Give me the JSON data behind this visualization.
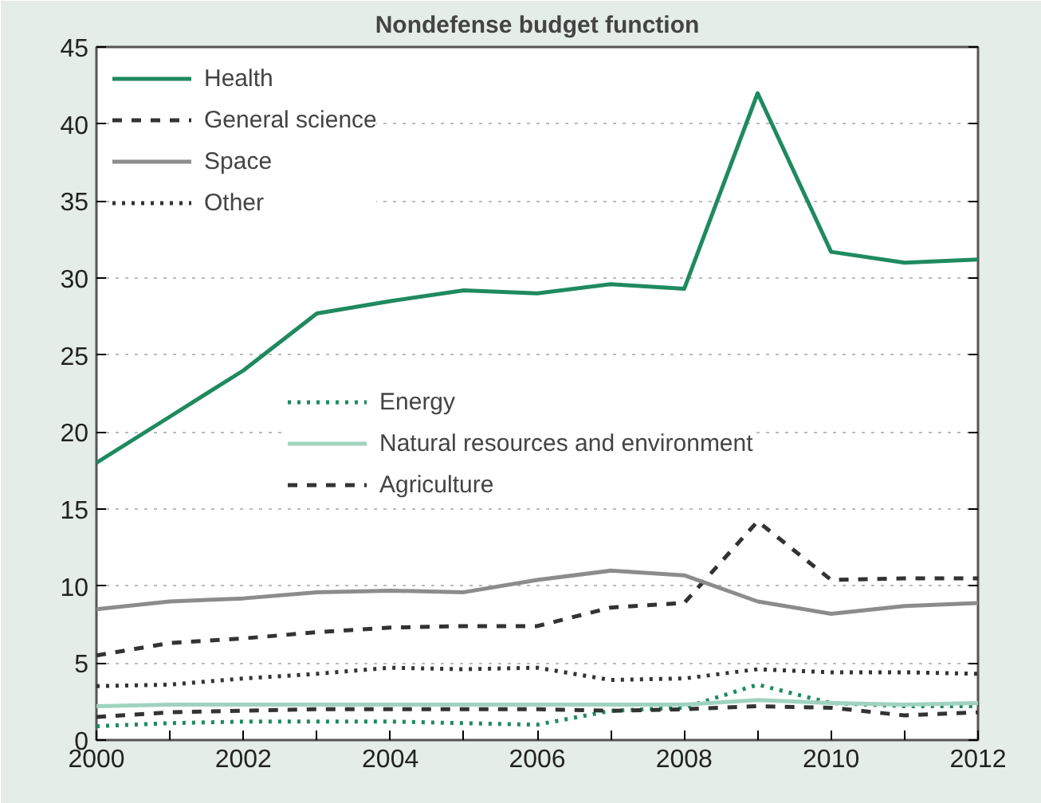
{
  "chart_data": {
    "type": "line",
    "title": "Nondefense budget function",
    "x": [
      2000,
      2001,
      2002,
      2003,
      2004,
      2005,
      2006,
      2007,
      2008,
      2009,
      2010,
      2011,
      2012
    ],
    "xlim": [
      2000,
      2012
    ],
    "ylim": [
      0,
      45
    ],
    "xticks": [
      2000,
      {
        "value": 2001,
        "label": null
      },
      2002,
      {
        "value": 2003,
        "label": null
      },
      2004,
      {
        "value": 2005,
        "label": null
      },
      2006,
      {
        "value": 2007,
        "label": null
      },
      2008,
      {
        "value": 2009,
        "label": null
      },
      2010,
      {
        "value": 2011,
        "label": null
      },
      2012
    ],
    "yticks": [
      0,
      5,
      10,
      15,
      20,
      25,
      30,
      35,
      40,
      45
    ],
    "grid": "y",
    "legend": "top left",
    "series": [
      {
        "name": "Health",
        "color": "#1f8a5f",
        "line_style": "solid",
        "values": [
          18,
          21,
          24,
          27.7,
          28.5,
          29.2,
          29,
          29.6,
          29.3,
          42,
          31.7,
          31,
          31.2
        ]
      },
      {
        "name": "General science",
        "color": "#333333",
        "line_style": "dashed",
        "values": [
          5.5,
          6.3,
          6.6,
          7,
          7.3,
          7.4,
          7.4,
          8.6,
          8.9,
          14.2,
          10.4,
          10.5,
          10.5
        ]
      },
      {
        "name": "Space",
        "color": "#8c8c8c",
        "line_style": "solid",
        "values": [
          8.5,
          9,
          9.2,
          9.6,
          9.7,
          9.6,
          10.4,
          11,
          10.7,
          9,
          8.2,
          8.7,
          8.9
        ]
      },
      {
        "name": "Other",
        "color": "#333333",
        "line_style": "dotted",
        "values": [
          3.5,
          3.6,
          4,
          4.3,
          4.7,
          4.6,
          4.7,
          3.9,
          4,
          4.6,
          4.4,
          4.4,
          4.3
        ]
      },
      {
        "name": "Energy",
        "color": "#1f8a5f",
        "line_style": "dotted",
        "values": [
          0.9,
          1.1,
          1.2,
          1.2,
          1.2,
          1.1,
          1,
          1.9,
          2.1,
          3.6,
          2.4,
          2.2,
          2.2
        ]
      },
      {
        "name": "Natural resources and environment",
        "color": "#9fd3bf",
        "line_style": "solid",
        "values": [
          2.2,
          2.3,
          2.3,
          2.3,
          2.3,
          2.3,
          2.3,
          2.3,
          2.3,
          2.6,
          2.4,
          2.3,
          2.4
        ]
      },
      {
        "name": "Agriculture",
        "color": "#333333",
        "line_style": "dashed",
        "values": [
          1.5,
          1.8,
          1.9,
          2,
          2,
          2,
          2,
          1.9,
          2,
          2.2,
          2.1,
          1.6,
          1.8
        ]
      }
    ]
  }
}
